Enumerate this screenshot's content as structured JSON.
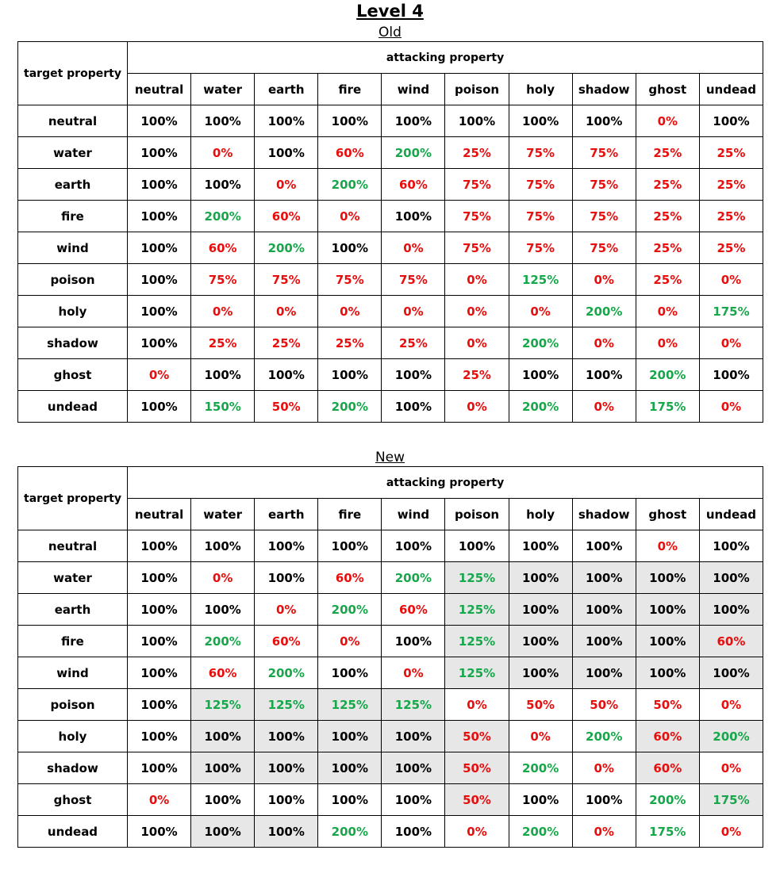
{
  "title": "Level 4",
  "colors": {
    "red": "#ea0d0d",
    "green": "#17a74a",
    "highlight": "#e7e7e7"
  },
  "row_header_label": "target property",
  "column_group_label": "attacking property",
  "columns": [
    "neutral",
    "water",
    "earth",
    "fire",
    "wind",
    "poison",
    "holy",
    "shadow",
    "ghost",
    "undead"
  ],
  "tables": {
    "old": {
      "label": "Old",
      "rows": [
        {
          "target": "neutral",
          "cells": [
            {
              "v": "100%",
              "c": "black"
            },
            {
              "v": "100%",
              "c": "black"
            },
            {
              "v": "100%",
              "c": "black"
            },
            {
              "v": "100%",
              "c": "black"
            },
            {
              "v": "100%",
              "c": "black"
            },
            {
              "v": "100%",
              "c": "black"
            },
            {
              "v": "100%",
              "c": "black"
            },
            {
              "v": "100%",
              "c": "black"
            },
            {
              "v": "0%",
              "c": "red"
            },
            {
              "v": "100%",
              "c": "black"
            }
          ]
        },
        {
          "target": "water",
          "cells": [
            {
              "v": "100%",
              "c": "black"
            },
            {
              "v": "0%",
              "c": "red"
            },
            {
              "v": "100%",
              "c": "black"
            },
            {
              "v": "60%",
              "c": "red"
            },
            {
              "v": "200%",
              "c": "green"
            },
            {
              "v": "25%",
              "c": "red"
            },
            {
              "v": "75%",
              "c": "red"
            },
            {
              "v": "75%",
              "c": "red"
            },
            {
              "v": "25%",
              "c": "red"
            },
            {
              "v": "25%",
              "c": "red"
            }
          ]
        },
        {
          "target": "earth",
          "cells": [
            {
              "v": "100%",
              "c": "black"
            },
            {
              "v": "100%",
              "c": "black"
            },
            {
              "v": "0%",
              "c": "red"
            },
            {
              "v": "200%",
              "c": "green"
            },
            {
              "v": "60%",
              "c": "red"
            },
            {
              "v": "75%",
              "c": "red"
            },
            {
              "v": "75%",
              "c": "red"
            },
            {
              "v": "75%",
              "c": "red"
            },
            {
              "v": "25%",
              "c": "red"
            },
            {
              "v": "25%",
              "c": "red"
            }
          ]
        },
        {
          "target": "fire",
          "cells": [
            {
              "v": "100%",
              "c": "black"
            },
            {
              "v": "200%",
              "c": "green"
            },
            {
              "v": "60%",
              "c": "red"
            },
            {
              "v": "0%",
              "c": "red"
            },
            {
              "v": "100%",
              "c": "black"
            },
            {
              "v": "75%",
              "c": "red"
            },
            {
              "v": "75%",
              "c": "red"
            },
            {
              "v": "75%",
              "c": "red"
            },
            {
              "v": "25%",
              "c": "red"
            },
            {
              "v": "25%",
              "c": "red"
            }
          ]
        },
        {
          "target": "wind",
          "cells": [
            {
              "v": "100%",
              "c": "black"
            },
            {
              "v": "60%",
              "c": "red"
            },
            {
              "v": "200%",
              "c": "green"
            },
            {
              "v": "100%",
              "c": "black"
            },
            {
              "v": "0%",
              "c": "red"
            },
            {
              "v": "75%",
              "c": "red"
            },
            {
              "v": "75%",
              "c": "red"
            },
            {
              "v": "75%",
              "c": "red"
            },
            {
              "v": "25%",
              "c": "red"
            },
            {
              "v": "25%",
              "c": "red"
            }
          ]
        },
        {
          "target": "poison",
          "cells": [
            {
              "v": "100%",
              "c": "black"
            },
            {
              "v": "75%",
              "c": "red"
            },
            {
              "v": "75%",
              "c": "red"
            },
            {
              "v": "75%",
              "c": "red"
            },
            {
              "v": "75%",
              "c": "red"
            },
            {
              "v": "0%",
              "c": "red"
            },
            {
              "v": "125%",
              "c": "green"
            },
            {
              "v": "0%",
              "c": "red"
            },
            {
              "v": "25%",
              "c": "red"
            },
            {
              "v": "0%",
              "c": "red"
            }
          ]
        },
        {
          "target": "holy",
          "cells": [
            {
              "v": "100%",
              "c": "black"
            },
            {
              "v": "0%",
              "c": "red"
            },
            {
              "v": "0%",
              "c": "red"
            },
            {
              "v": "0%",
              "c": "red"
            },
            {
              "v": "0%",
              "c": "red"
            },
            {
              "v": "0%",
              "c": "red"
            },
            {
              "v": "0%",
              "c": "red"
            },
            {
              "v": "200%",
              "c": "green"
            },
            {
              "v": "0%",
              "c": "red"
            },
            {
              "v": "175%",
              "c": "green"
            }
          ]
        },
        {
          "target": "shadow",
          "cells": [
            {
              "v": "100%",
              "c": "black"
            },
            {
              "v": "25%",
              "c": "red"
            },
            {
              "v": "25%",
              "c": "red"
            },
            {
              "v": "25%",
              "c": "red"
            },
            {
              "v": "25%",
              "c": "red"
            },
            {
              "v": "0%",
              "c": "red"
            },
            {
              "v": "200%",
              "c": "green"
            },
            {
              "v": "0%",
              "c": "red"
            },
            {
              "v": "0%",
              "c": "red"
            },
            {
              "v": "0%",
              "c": "red"
            }
          ]
        },
        {
          "target": "ghost",
          "cells": [
            {
              "v": "0%",
              "c": "red"
            },
            {
              "v": "100%",
              "c": "black"
            },
            {
              "v": "100%",
              "c": "black"
            },
            {
              "v": "100%",
              "c": "black"
            },
            {
              "v": "100%",
              "c": "black"
            },
            {
              "v": "25%",
              "c": "red"
            },
            {
              "v": "100%",
              "c": "black"
            },
            {
              "v": "100%",
              "c": "black"
            },
            {
              "v": "200%",
              "c": "green"
            },
            {
              "v": "100%",
              "c": "black"
            }
          ]
        },
        {
          "target": "undead",
          "cells": [
            {
              "v": "100%",
              "c": "black"
            },
            {
              "v": "150%",
              "c": "green"
            },
            {
              "v": "50%",
              "c": "red"
            },
            {
              "v": "200%",
              "c": "green"
            },
            {
              "v": "100%",
              "c": "black"
            },
            {
              "v": "0%",
              "c": "red"
            },
            {
              "v": "200%",
              "c": "green"
            },
            {
              "v": "0%",
              "c": "red"
            },
            {
              "v": "175%",
              "c": "green"
            },
            {
              "v": "0%",
              "c": "red"
            }
          ]
        }
      ]
    },
    "new": {
      "label": "New",
      "rows": [
        {
          "target": "neutral",
          "cells": [
            {
              "v": "100%",
              "c": "black"
            },
            {
              "v": "100%",
              "c": "black"
            },
            {
              "v": "100%",
              "c": "black"
            },
            {
              "v": "100%",
              "c": "black"
            },
            {
              "v": "100%",
              "c": "black"
            },
            {
              "v": "100%",
              "c": "black"
            },
            {
              "v": "100%",
              "c": "black"
            },
            {
              "v": "100%",
              "c": "black"
            },
            {
              "v": "0%",
              "c": "red"
            },
            {
              "v": "100%",
              "c": "black"
            }
          ]
        },
        {
          "target": "water",
          "cells": [
            {
              "v": "100%",
              "c": "black"
            },
            {
              "v": "0%",
              "c": "red"
            },
            {
              "v": "100%",
              "c": "black"
            },
            {
              "v": "60%",
              "c": "red"
            },
            {
              "v": "200%",
              "c": "green"
            },
            {
              "v": "125%",
              "c": "green",
              "hl": true
            },
            {
              "v": "100%",
              "c": "black",
              "hl": true
            },
            {
              "v": "100%",
              "c": "black",
              "hl": true
            },
            {
              "v": "100%",
              "c": "black",
              "hl": true
            },
            {
              "v": "100%",
              "c": "black",
              "hl": true
            }
          ]
        },
        {
          "target": "earth",
          "cells": [
            {
              "v": "100%",
              "c": "black"
            },
            {
              "v": "100%",
              "c": "black"
            },
            {
              "v": "0%",
              "c": "red"
            },
            {
              "v": "200%",
              "c": "green"
            },
            {
              "v": "60%",
              "c": "red"
            },
            {
              "v": "125%",
              "c": "green",
              "hl": true
            },
            {
              "v": "100%",
              "c": "black",
              "hl": true
            },
            {
              "v": "100%",
              "c": "black",
              "hl": true
            },
            {
              "v": "100%",
              "c": "black",
              "hl": true
            },
            {
              "v": "100%",
              "c": "black",
              "hl": true
            }
          ]
        },
        {
          "target": "fire",
          "cells": [
            {
              "v": "100%",
              "c": "black"
            },
            {
              "v": "200%",
              "c": "green"
            },
            {
              "v": "60%",
              "c": "red"
            },
            {
              "v": "0%",
              "c": "red"
            },
            {
              "v": "100%",
              "c": "black"
            },
            {
              "v": "125%",
              "c": "green",
              "hl": true
            },
            {
              "v": "100%",
              "c": "black",
              "hl": true
            },
            {
              "v": "100%",
              "c": "black",
              "hl": true
            },
            {
              "v": "100%",
              "c": "black",
              "hl": true
            },
            {
              "v": "60%",
              "c": "red",
              "hl": true
            }
          ]
        },
        {
          "target": "wind",
          "cells": [
            {
              "v": "100%",
              "c": "black"
            },
            {
              "v": "60%",
              "c": "red"
            },
            {
              "v": "200%",
              "c": "green"
            },
            {
              "v": "100%",
              "c": "black"
            },
            {
              "v": "0%",
              "c": "red"
            },
            {
              "v": "125%",
              "c": "green",
              "hl": true
            },
            {
              "v": "100%",
              "c": "black",
              "hl": true
            },
            {
              "v": "100%",
              "c": "black",
              "hl": true
            },
            {
              "v": "100%",
              "c": "black",
              "hl": true
            },
            {
              "v": "100%",
              "c": "black",
              "hl": true
            }
          ]
        },
        {
          "target": "poison",
          "cells": [
            {
              "v": "100%",
              "c": "black"
            },
            {
              "v": "125%",
              "c": "green",
              "hl": true
            },
            {
              "v": "125%",
              "c": "green",
              "hl": true
            },
            {
              "v": "125%",
              "c": "green",
              "hl": true
            },
            {
              "v": "125%",
              "c": "green",
              "hl": true
            },
            {
              "v": "0%",
              "c": "red"
            },
            {
              "v": "50%",
              "c": "red"
            },
            {
              "v": "50%",
              "c": "red"
            },
            {
              "v": "50%",
              "c": "red"
            },
            {
              "v": "0%",
              "c": "red"
            }
          ]
        },
        {
          "target": "holy",
          "cells": [
            {
              "v": "100%",
              "c": "black"
            },
            {
              "v": "100%",
              "c": "black",
              "hl": true
            },
            {
              "v": "100%",
              "c": "black",
              "hl": true
            },
            {
              "v": "100%",
              "c": "black",
              "hl": true
            },
            {
              "v": "100%",
              "c": "black",
              "hl": true
            },
            {
              "v": "50%",
              "c": "red",
              "hl": true
            },
            {
              "v": "0%",
              "c": "red"
            },
            {
              "v": "200%",
              "c": "green"
            },
            {
              "v": "60%",
              "c": "red",
              "hl": true
            },
            {
              "v": "200%",
              "c": "green",
              "hl": true
            }
          ]
        },
        {
          "target": "shadow",
          "cells": [
            {
              "v": "100%",
              "c": "black"
            },
            {
              "v": "100%",
              "c": "black",
              "hl": true
            },
            {
              "v": "100%",
              "c": "black",
              "hl": true
            },
            {
              "v": "100%",
              "c": "black",
              "hl": true
            },
            {
              "v": "100%",
              "c": "black",
              "hl": true
            },
            {
              "v": "50%",
              "c": "red",
              "hl": true
            },
            {
              "v": "200%",
              "c": "green"
            },
            {
              "v": "0%",
              "c": "red"
            },
            {
              "v": "60%",
              "c": "red",
              "hl": true
            },
            {
              "v": "0%",
              "c": "red"
            }
          ]
        },
        {
          "target": "ghost",
          "cells": [
            {
              "v": "0%",
              "c": "red"
            },
            {
              "v": "100%",
              "c": "black"
            },
            {
              "v": "100%",
              "c": "black"
            },
            {
              "v": "100%",
              "c": "black"
            },
            {
              "v": "100%",
              "c": "black"
            },
            {
              "v": "50%",
              "c": "red",
              "hl": true
            },
            {
              "v": "100%",
              "c": "black"
            },
            {
              "v": "100%",
              "c": "black"
            },
            {
              "v": "200%",
              "c": "green"
            },
            {
              "v": "175%",
              "c": "green",
              "hl": true
            }
          ]
        },
        {
          "target": "undead",
          "cells": [
            {
              "v": "100%",
              "c": "black"
            },
            {
              "v": "100%",
              "c": "black",
              "hl": true
            },
            {
              "v": "100%",
              "c": "black",
              "hl": true
            },
            {
              "v": "200%",
              "c": "green"
            },
            {
              "v": "100%",
              "c": "black"
            },
            {
              "v": "0%",
              "c": "red"
            },
            {
              "v": "200%",
              "c": "green"
            },
            {
              "v": "0%",
              "c": "red"
            },
            {
              "v": "175%",
              "c": "green"
            },
            {
              "v": "0%",
              "c": "red"
            }
          ]
        }
      ]
    }
  }
}
